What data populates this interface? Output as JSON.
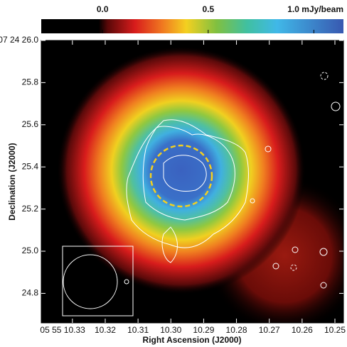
{
  "chart_data": {
    "type": "image",
    "xlabel": "Right Ascension (J2000)",
    "ylabel": "Declination (J2000)",
    "xlim": [
      10.3395,
      10.2474
    ],
    "xticks": [
      {
        "value": 10.33,
        "label": "05 55 10.33"
      },
      {
        "value": 10.32,
        "label": "10.32"
      },
      {
        "value": 10.31,
        "label": "10.31"
      },
      {
        "value": 10.3,
        "label": "10.30"
      },
      {
        "value": 10.29,
        "label": "10.29"
      },
      {
        "value": 10.28,
        "label": "10.28"
      },
      {
        "value": 10.27,
        "label": "10.27"
      },
      {
        "value": 10.26,
        "label": "10.26"
      },
      {
        "value": 10.25,
        "label": "10.25"
      }
    ],
    "ylim": [
      24.66,
      26.0
    ],
    "yticks": [
      {
        "value": 26,
        "label": "07 24 26.0"
      },
      25.8,
      25.6,
      25.4,
      25.2,
      {
        "value": 25,
        "label": "25.0"
      },
      24.8
    ],
    "colorbar": {
      "lim": [
        -0.29,
        1.14
      ],
      "ticks": [
        {
          "value": 0,
          "label": "0.0"
        },
        0.5,
        {
          "value": 1,
          "label": "1.0 mJy/beam"
        }
      ]
    }
  }
}
